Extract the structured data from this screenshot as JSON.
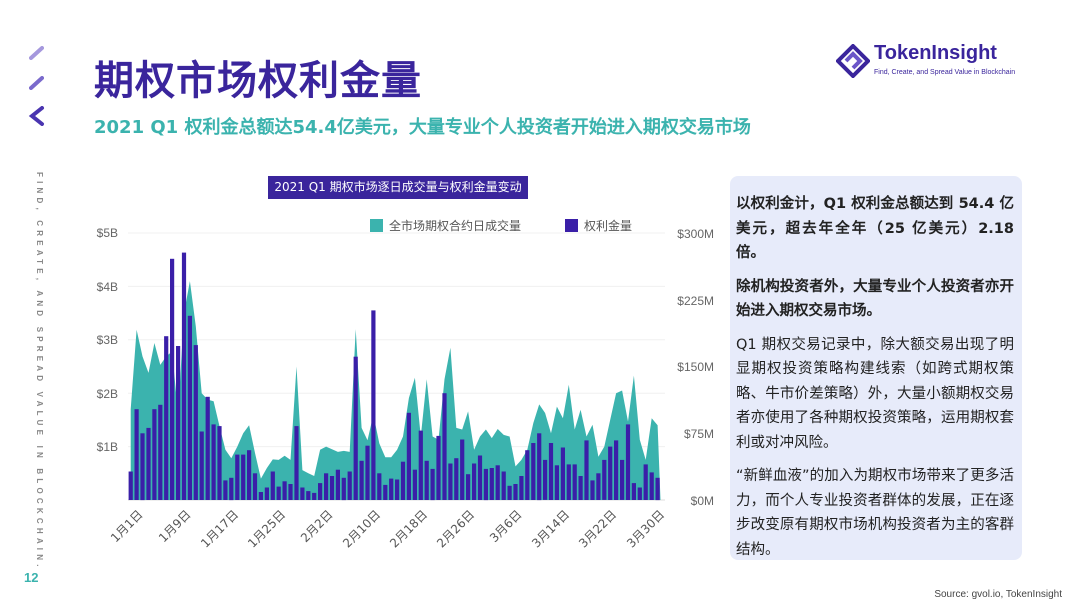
{
  "header": {
    "title": "期权市场权利金量",
    "subtitle": "2021 Q1 权利金总额达54.4亿美元，大量专业个人投资者开始进入期权交易市场"
  },
  "side_text": "FIND, CREATE, AND SPREAD VALUE IN BLOCKCHAIN.",
  "logo": {
    "name": "TokenInsight",
    "tagline": "Find, Create, and Spread Value in Blockchain"
  },
  "colors": {
    "brand": "#3a259c",
    "teal": "#3bb3ae",
    "panel": "#e7ebfa"
  },
  "chart_data": {
    "type": "bar+area",
    "title": "2021 Q1 期权市场逐日成交量与权利金量变动",
    "legend": [
      "全市场期权合约日成交量",
      "权利金量"
    ],
    "legend_position": "top-right",
    "left_axis": {
      "ticks": [
        "$5B",
        "$4B",
        "$3B",
        "$2B",
        "$1B"
      ],
      "ylim": [
        0,
        5
      ],
      "unit": "B"
    },
    "right_axis": {
      "ticks": [
        "$300M",
        "$225M",
        "$150M",
        "$75M",
        "$0M"
      ],
      "ylim": [
        0,
        300
      ],
      "unit": "M"
    },
    "x_ticks": [
      "1月1日",
      "1月9日",
      "1月17日",
      "1月25日",
      "2月2日",
      "2月10日",
      "2月18日",
      "2月26日",
      "3月6日",
      "3月14日",
      "3月22日",
      "3月30日"
    ],
    "x_range": [
      "1月1日",
      "3月31日"
    ],
    "grid": true,
    "series": [
      {
        "name": "全市场期权合约日成交量",
        "type": "area",
        "axis": "left",
        "values": [
          1.7,
          3.19,
          2.69,
          2.38,
          2.94,
          2.53,
          2.69,
          2.78,
          1.6,
          3.5,
          4.1,
          3.25,
          2.0,
          1.88,
          1.85,
          1.38,
          0.94,
          0.78,
          1.0,
          1.25,
          1.4,
          0.88,
          0.4,
          0.6,
          0.76,
          0.75,
          0.83,
          0.75,
          2.5,
          0.56,
          0.5,
          0.45,
          0.94,
          1.0,
          0.95,
          0.9,
          0.92,
          0.9,
          3.2,
          1.35,
          1.12,
          1.6,
          1.06,
          0.8,
          0.8,
          0.94,
          1.19,
          1.91,
          2.29,
          1.19,
          2.26,
          1.19,
          1.13,
          2.26,
          2.85,
          1.35,
          1.32,
          1.66,
          0.94,
          1.19,
          1.32,
          1.16,
          1.33,
          1.22,
          1.19,
          0.63,
          0.75,
          0.94,
          1.44,
          1.79,
          1.63,
          1.25,
          1.75,
          1.53,
          2.16,
          1.32,
          1.69,
          1.19,
          1.41,
          0.81,
          1.0,
          1.5,
          2.0,
          2.05,
          1.47,
          2.33,
          1.13,
          0.75,
          1.53,
          1.4
        ]
      },
      {
        "name": "权利金量",
        "type": "bar",
        "axis": "right",
        "values": [
          32,
          102,
          75,
          81,
          102,
          107,
          184,
          271,
          173,
          278,
          207,
          174,
          77,
          116,
          85,
          83,
          22,
          25,
          51,
          51,
          56,
          30,
          9,
          14,
          32,
          15,
          21,
          18,
          83,
          14,
          10,
          8,
          19,
          30,
          27,
          34,
          25,
          32,
          161,
          44,
          61,
          213,
          30,
          17,
          24,
          23,
          43,
          98,
          34,
          78,
          44,
          35,
          72,
          120,
          41,
          47,
          68,
          29,
          41,
          50,
          35,
          36,
          39,
          32,
          16,
          18,
          27,
          56,
          64,
          75,
          45,
          64,
          39,
          59,
          40,
          40,
          27,
          67,
          22,
          30,
          45,
          60,
          67,
          45,
          85,
          19,
          14,
          40,
          31,
          25
        ]
      }
    ]
  },
  "panel": {
    "p1": "以权利金计，Q1 权利金总额达到 54.4 亿美元，超去年全年（25 亿美元）2.18 倍。",
    "p2": "除机构投资者外，大量专业个人投资者亦开始进入期权交易市场。",
    "p3": "Q1 期权交易记录中，除大额交易出现了明显期权投资策略构建线索（如跨式期权策略、牛市价差策略）外，大量小额期权交易者亦使用了各种期权投资策略，运用期权套利或对冲风险。",
    "p4": "“新鲜血液”的加入为期权市场带来了更多活力，而个人专业投资者群体的发展，正在逐步改变原有期权市场机构投资者为主的客群结构。"
  },
  "footer": {
    "page": "12",
    "source": "Source: gvol.io, TokenInsight"
  }
}
